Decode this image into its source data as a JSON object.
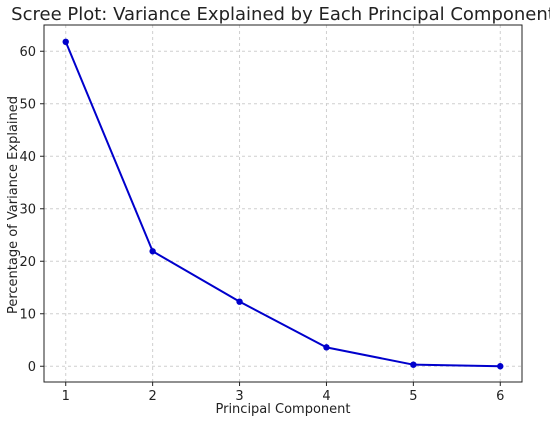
{
  "chart_data": {
    "type": "line",
    "title": "Scree Plot: Variance Explained by Each Principal Component",
    "xlabel": "Principal Component",
    "ylabel": "Percentage of Variance Explained",
    "x": [
      1,
      2,
      3,
      4,
      5,
      6
    ],
    "xticks": [
      "1",
      "2",
      "3",
      "4",
      "5",
      "6"
    ],
    "yticks": [
      "0",
      "10",
      "20",
      "30",
      "40",
      "50",
      "60"
    ],
    "xlim": [
      0.75,
      6.25
    ],
    "ylim": [
      -3,
      65
    ],
    "grid": true,
    "legend": "none",
    "series": [
      {
        "values": [
          61.8,
          21.9,
          12.3,
          3.6,
          0.3,
          0.0
        ],
        "color": "#0000cc"
      }
    ]
  }
}
